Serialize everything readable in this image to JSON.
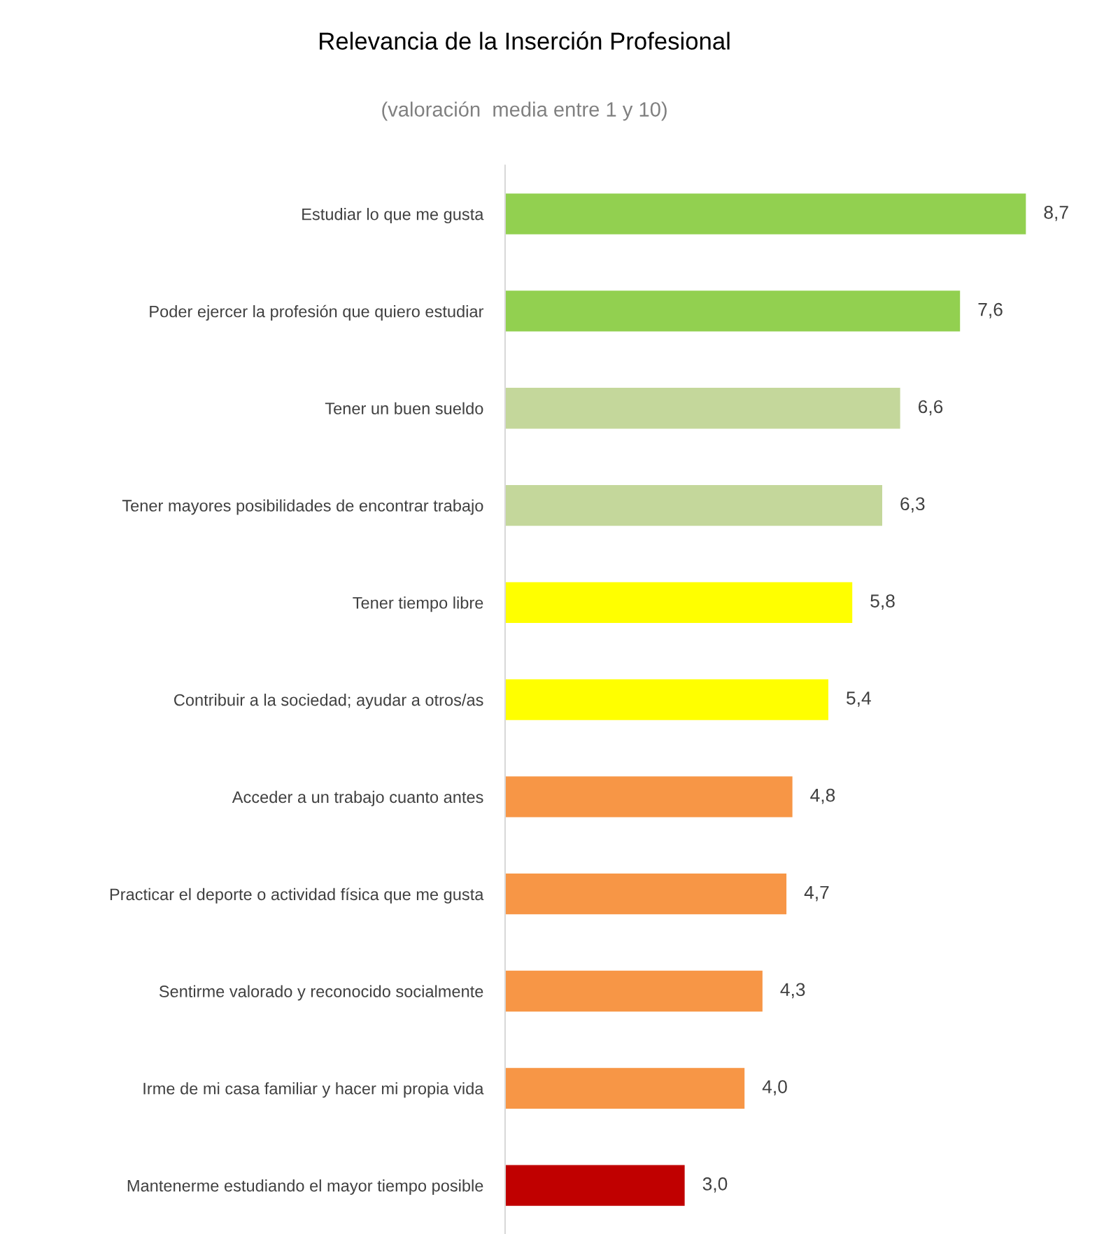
{
  "chart_data": {
    "type": "bar",
    "orientation": "horizontal",
    "title": "Relevancia de la Inserción Profesional",
    "subtitle": "(valoración  media entre 1 y 10)",
    "categories": [
      "Estudiar lo que me gusta",
      "Poder ejercer la profesión que quiero estudiar",
      "Tener un buen sueldo",
      "Tener mayores posibilidades de encontrar trabajo",
      "Tener tiempo libre",
      "Contribuir a la sociedad; ayudar a otros/as",
      "Acceder a un trabajo cuanto antes",
      "Practicar el deporte o actividad física que me gusta",
      "Sentirme valorado y reconocido socialmente",
      "Irme de mi casa familiar y hacer mi propia vida",
      "Mantenerme estudiando el mayor tiempo posible"
    ],
    "values": [
      8.7,
      7.6,
      6.6,
      6.3,
      5.8,
      5.4,
      4.8,
      4.7,
      4.3,
      4.0,
      3.0
    ],
    "value_labels": [
      "8,7",
      "7,6",
      "6,6",
      "6,3",
      "5,8",
      "5,4",
      "4,8",
      "4,7",
      "4,3",
      "4,0",
      "3,0"
    ],
    "colors": [
      "#92d050",
      "#92d050",
      "#c4d79b",
      "#c4d79b",
      "#ffff00",
      "#ffff00",
      "#f79646",
      "#f79646",
      "#f79646",
      "#f79646",
      "#c00000"
    ],
    "grid": false,
    "legend": false,
    "tick_labels": "y"
  }
}
